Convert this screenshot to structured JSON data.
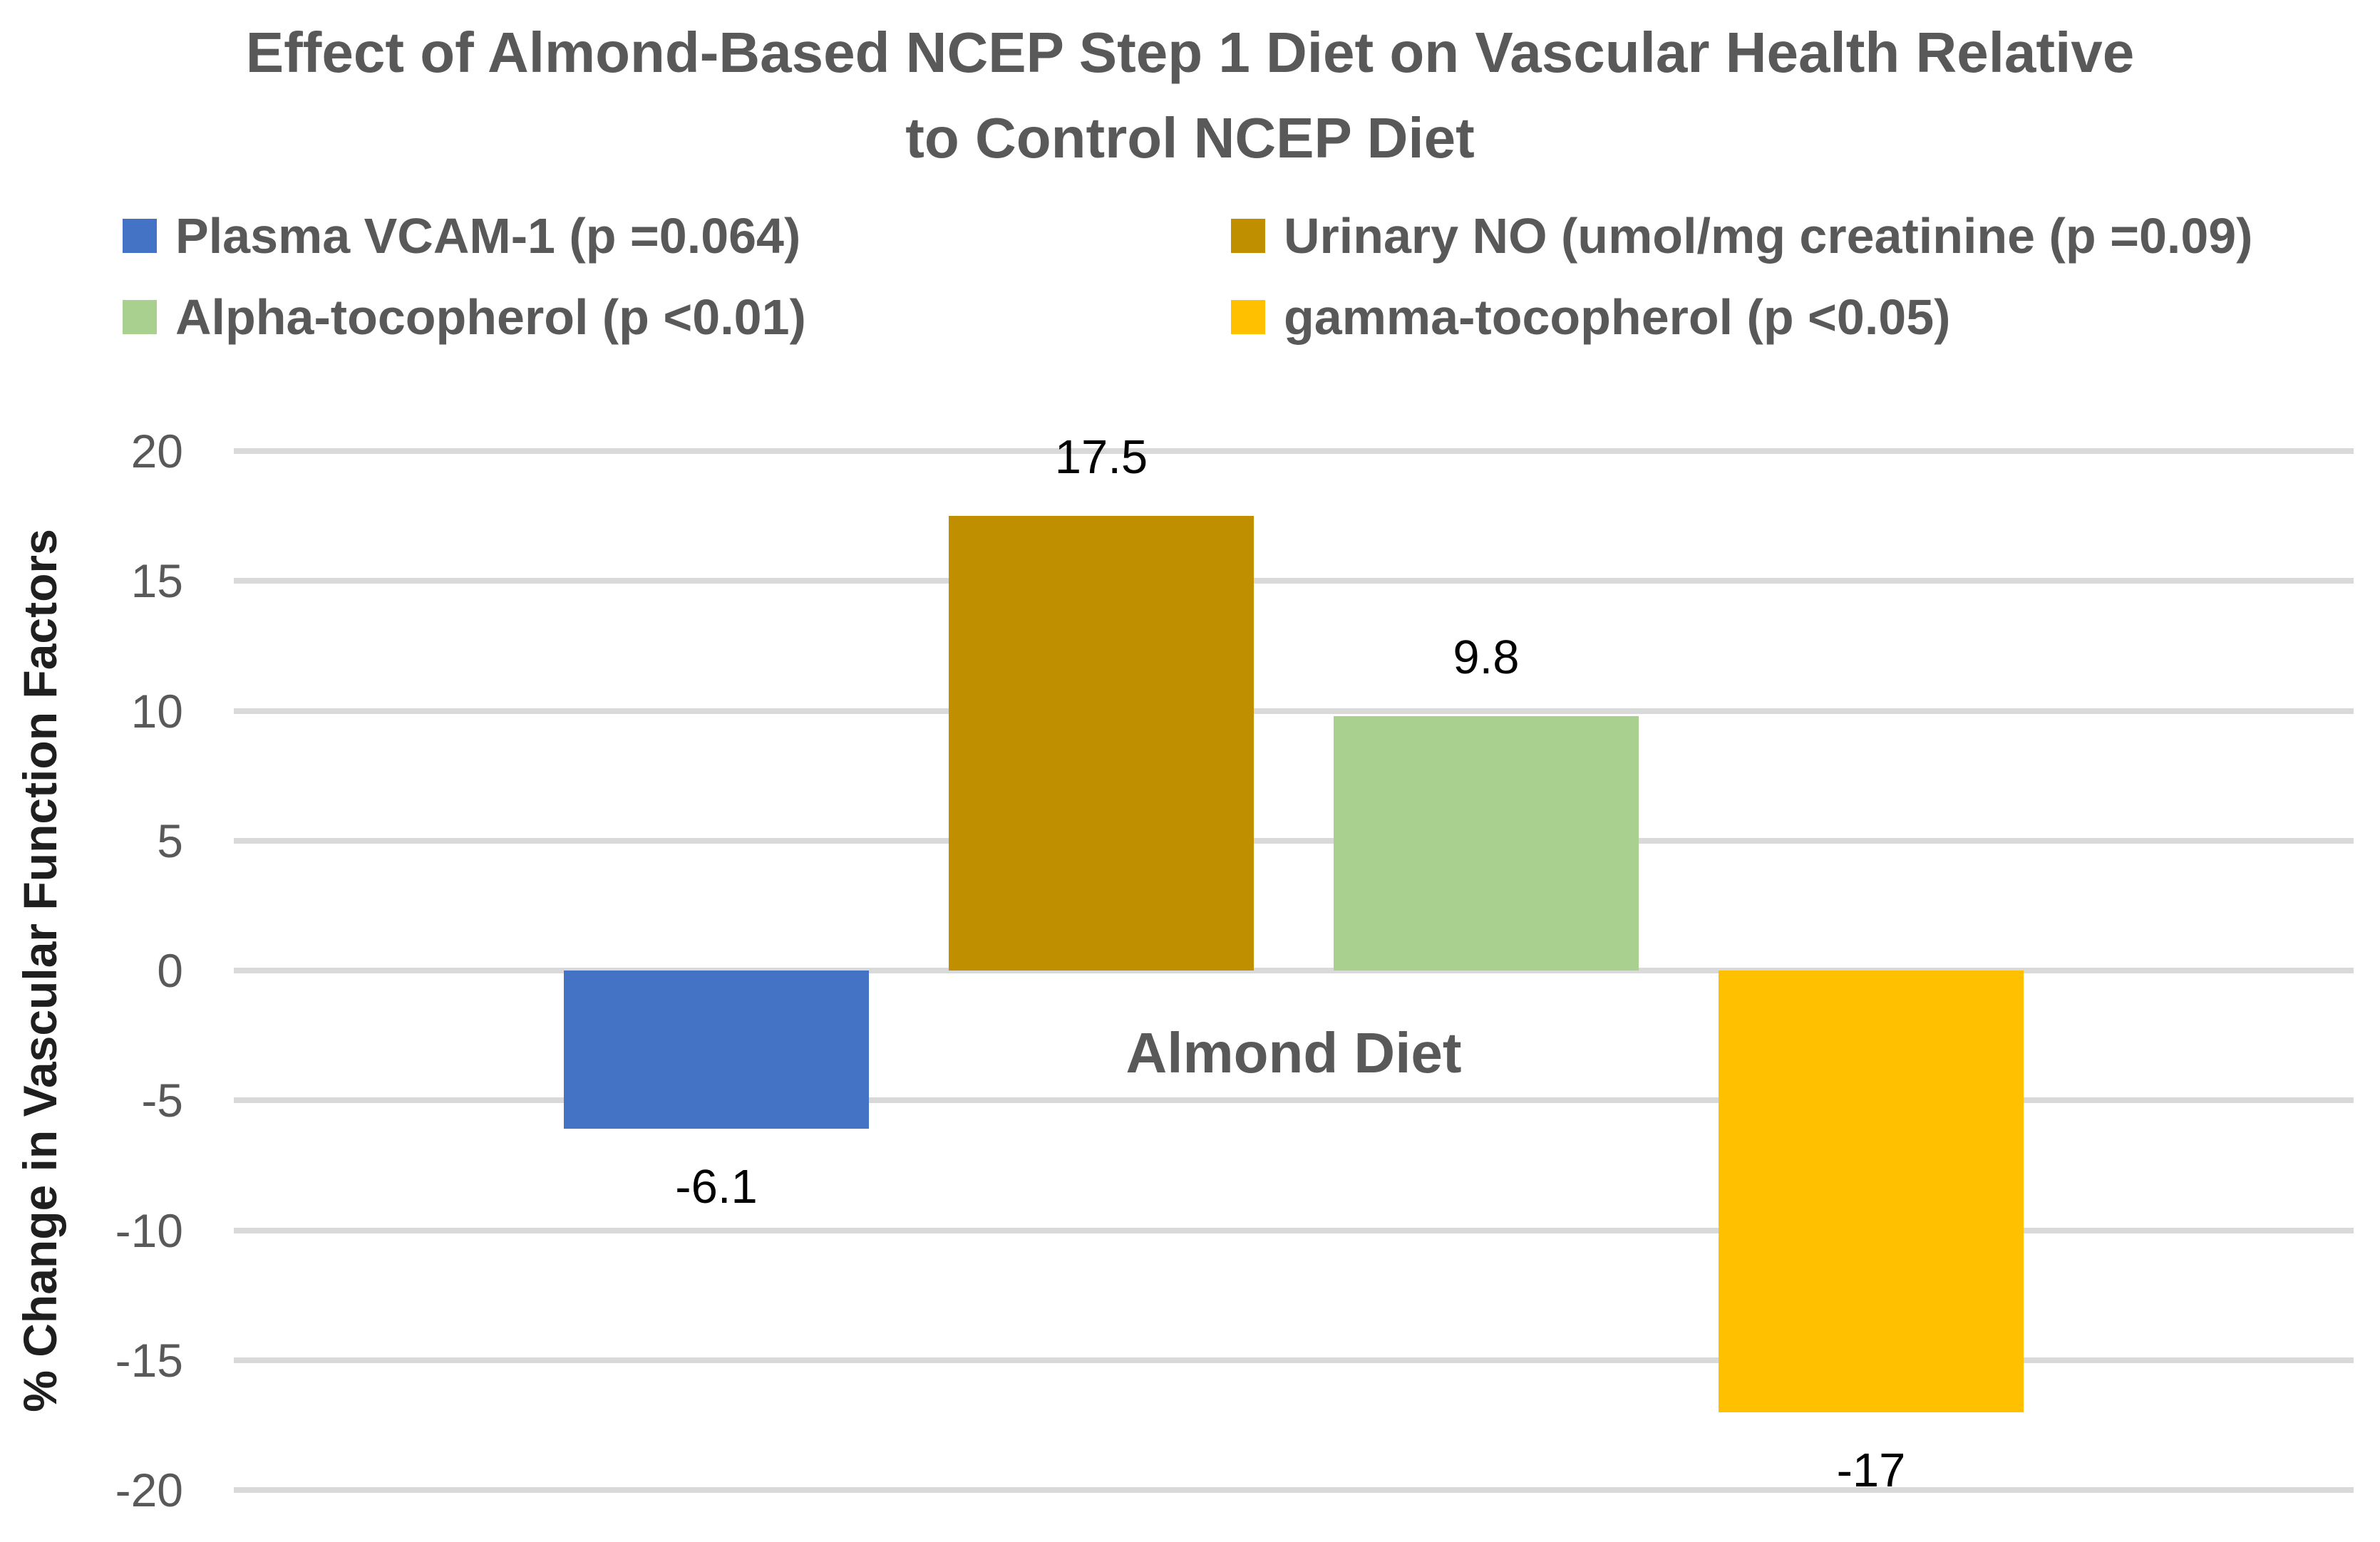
{
  "title": {
    "line1": "Effect of Almond-Based NCEP Step 1 Diet on Vascular Health Relative",
    "line2": "to Control NCEP Diet"
  },
  "legend": {
    "items": [
      {
        "label": "Plasma VCAM-1 (p =0.064)",
        "color": "#4472C4"
      },
      {
        "label": "Urinary NO (umol/mg creatinine (p =0.09)",
        "color": "#BF8F00"
      },
      {
        "label": "Alpha-tocopherol (p <0.01)",
        "color": "#A9D08E"
      },
      {
        "label": "gamma-tocopherol (p <0.05)",
        "color": "#FFC000"
      }
    ]
  },
  "chart_data": {
    "type": "bar",
    "title": "Effect of Almond-Based NCEP Step 1 Diet on Vascular Health Relative to Control NCEP Diet",
    "categories": [
      "Almond Diet"
    ],
    "series": [
      {
        "name": "Plasma VCAM-1 (p =0.064)",
        "values": [
          -6.1
        ],
        "data_label": "-6.1",
        "color": "#4472C4"
      },
      {
        "name": "Urinary NO (umol/mg creatinine (p =0.09)",
        "values": [
          17.5
        ],
        "data_label": "17.5",
        "color": "#BF8F00"
      },
      {
        "name": "Alpha-tocopherol (p <0.01)",
        "values": [
          9.8
        ],
        "data_label": "9.8",
        "color": "#A9D08E"
      },
      {
        "name": "gamma-tocopherol (p <0.05)",
        "values": [
          -17
        ],
        "data_label": "-17",
        "color": "#FFC000"
      }
    ],
    "xlabel": "",
    "ylabel": "% Change in Vascular Function Factors",
    "ylim": [
      -20,
      20
    ],
    "ytick_step": 5,
    "yticks": [
      20,
      15,
      10,
      5,
      0,
      -5,
      -10,
      -15,
      -20
    ],
    "grid": "horizontal",
    "gridline_color": "#D9D9D9",
    "legend_position": "top",
    "data_label_color": "#000000",
    "axis_text_color": "#595959"
  }
}
